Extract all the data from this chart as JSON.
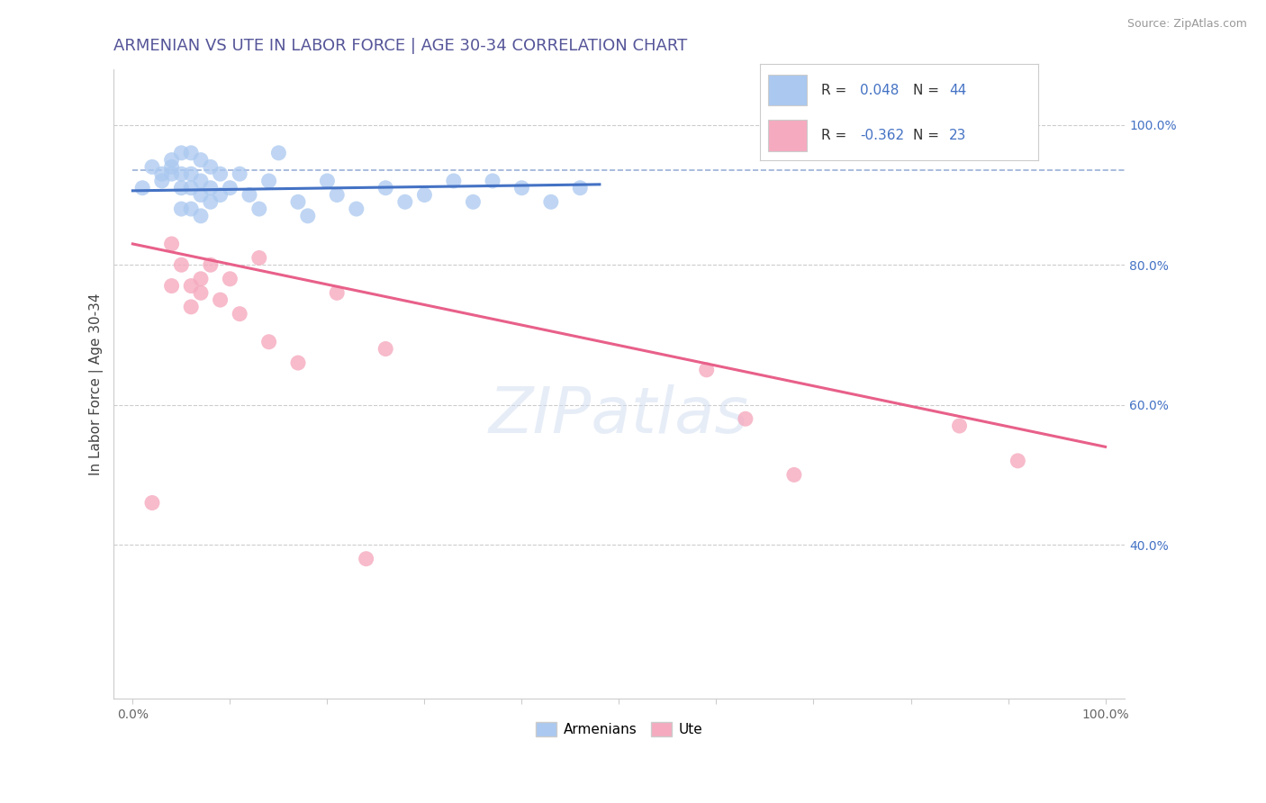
{
  "title": "ARMENIAN VS UTE IN LABOR FORCE | AGE 30-34 CORRELATION CHART",
  "source": "Source: ZipAtlas.com",
  "xlabel": "",
  "ylabel": "In Labor Force | Age 30-34",
  "xlim": [
    -0.02,
    1.02
  ],
  "ylim": [
    0.18,
    1.08
  ],
  "xticks": [
    0.0,
    0.1,
    0.2,
    0.3,
    0.4,
    0.5,
    0.6,
    0.7,
    0.8,
    0.9,
    1.0
  ],
  "xticklabels_sparse": {
    "0": "0.0%",
    "10": "100.0%"
  },
  "yticks": [
    0.4,
    0.6,
    0.8,
    1.0
  ],
  "yticklabels": [
    "40.0%",
    "60.0%",
    "80.0%",
    "100.0%"
  ],
  "armenian_color": "#aac8f0",
  "ute_color": "#f5aabf",
  "armenian_line_color": "#4472c4",
  "ute_line_color": "#e8608a",
  "r_armenian": 0.048,
  "n_armenian": 44,
  "r_ute": -0.362,
  "n_ute": 23,
  "legend_label_1": "Armenians",
  "legend_label_2": "Ute",
  "background_color": "#ffffff",
  "grid_color": "#cccccc",
  "armenian_scatter_x": [
    0.01,
    0.02,
    0.03,
    0.03,
    0.04,
    0.04,
    0.04,
    0.05,
    0.05,
    0.05,
    0.05,
    0.06,
    0.06,
    0.06,
    0.06,
    0.07,
    0.07,
    0.07,
    0.07,
    0.08,
    0.08,
    0.08,
    0.09,
    0.09,
    0.1,
    0.11,
    0.12,
    0.13,
    0.14,
    0.15,
    0.17,
    0.18,
    0.2,
    0.21,
    0.23,
    0.26,
    0.28,
    0.3,
    0.33,
    0.35,
    0.37,
    0.4,
    0.43,
    0.46
  ],
  "armenian_scatter_y": [
    0.91,
    0.94,
    0.93,
    0.92,
    0.95,
    0.94,
    0.93,
    0.96,
    0.93,
    0.91,
    0.88,
    0.96,
    0.93,
    0.91,
    0.88,
    0.95,
    0.92,
    0.9,
    0.87,
    0.94,
    0.91,
    0.89,
    0.93,
    0.9,
    0.91,
    0.93,
    0.9,
    0.88,
    0.92,
    0.96,
    0.89,
    0.87,
    0.92,
    0.9,
    0.88,
    0.91,
    0.89,
    0.9,
    0.92,
    0.89,
    0.92,
    0.91,
    0.89,
    0.91
  ],
  "ute_scatter_x": [
    0.02,
    0.04,
    0.04,
    0.05,
    0.06,
    0.06,
    0.07,
    0.07,
    0.08,
    0.09,
    0.1,
    0.11,
    0.13,
    0.14,
    0.17,
    0.21,
    0.24,
    0.26,
    0.59,
    0.63,
    0.68,
    0.85,
    0.91
  ],
  "ute_scatter_y": [
    0.46,
    0.83,
    0.77,
    0.8,
    0.77,
    0.74,
    0.78,
    0.76,
    0.8,
    0.75,
    0.78,
    0.73,
    0.81,
    0.69,
    0.66,
    0.76,
    0.38,
    0.68,
    0.65,
    0.58,
    0.5,
    0.57,
    0.52
  ],
  "armenian_trend_x": [
    0.0,
    0.48
  ],
  "armenian_trend_y": [
    0.906,
    0.915
  ],
  "ute_trend_x": [
    0.0,
    1.0
  ],
  "ute_trend_y": [
    0.83,
    0.54
  ],
  "dashed_line_y": 0.935,
  "dashed_line_x": [
    0.0,
    1.02
  ],
  "title_fontsize": 13,
  "axis_fontsize": 11,
  "tick_fontsize": 10,
  "legend_fontsize": 12,
  "scatter_size": 150
}
